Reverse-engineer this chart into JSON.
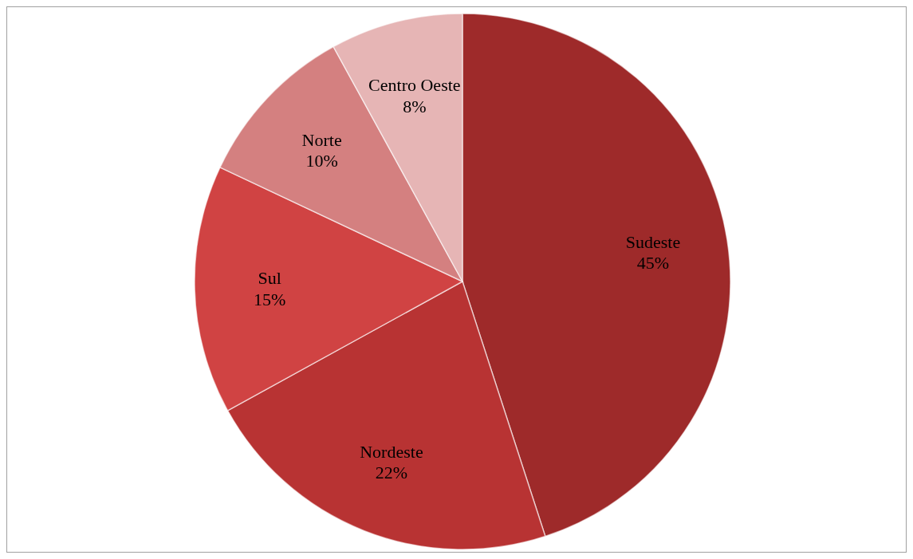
{
  "chart_data": {
    "type": "pie",
    "categories": [
      "Sudeste",
      "Nordeste",
      "Sul",
      "Norte",
      "Centro Oeste"
    ],
    "values": [
      45,
      22,
      15,
      10,
      8
    ],
    "value_labels": [
      "45%",
      "22%",
      "15%",
      "10%",
      "8%"
    ],
    "colors": [
      "#9e2a2a",
      "#b83333",
      "#d04343",
      "#d48080",
      "#e6b5b5"
    ]
  }
}
